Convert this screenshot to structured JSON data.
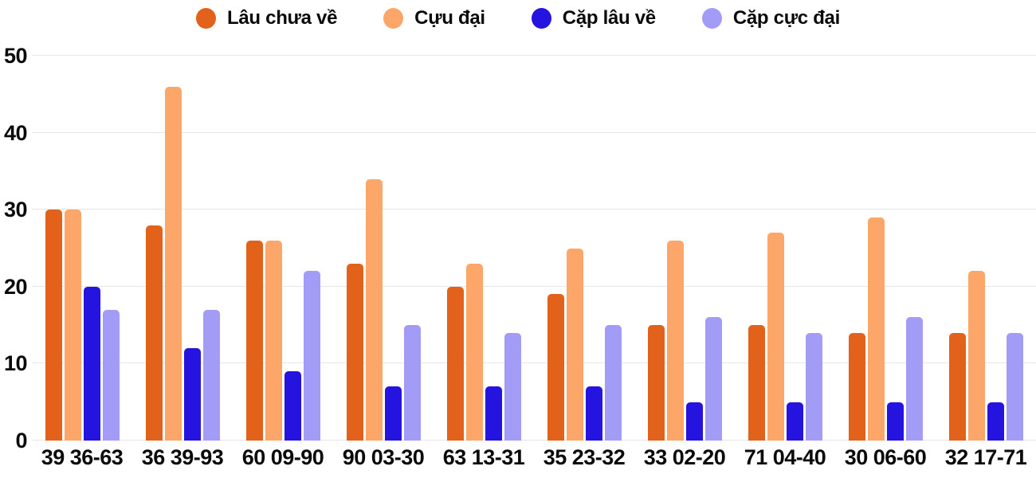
{
  "chart_data": {
    "type": "bar",
    "title": "",
    "categories": [
      "39 36-63",
      "36 39-93",
      "60 09-90",
      "90 03-30",
      "63 13-31",
      "35 23-32",
      "33 02-20",
      "71 04-40",
      "30 06-60",
      "32 17-71"
    ],
    "series": [
      {
        "name": "Lâu chưa về",
        "color": "#e2621b",
        "values": [
          30,
          28,
          26,
          23,
          20,
          19,
          15,
          15,
          14,
          14
        ]
      },
      {
        "name": "Cựu đại",
        "color": "#fda66a",
        "values": [
          30,
          46,
          26,
          34,
          23,
          25,
          26,
          27,
          29,
          22
        ]
      },
      {
        "name": "Cặp lâu về",
        "color": "#2513e0",
        "values": [
          20,
          12,
          9,
          7,
          7,
          7,
          5,
          5,
          5,
          5
        ]
      },
      {
        "name": "Cặp cực đại",
        "color": "#a39cf7",
        "values": [
          17,
          17,
          22,
          15,
          14,
          15,
          16,
          14,
          16,
          14
        ]
      }
    ],
    "y_ticks": [
      0,
      10,
      20,
      30,
      40,
      50
    ],
    "ylim": [
      0,
      50
    ],
    "grid": true,
    "legend_position": "top",
    "grid_color": "#e6e6e6",
    "text_color": "#0a0a0a",
    "background": "#ffffff"
  }
}
